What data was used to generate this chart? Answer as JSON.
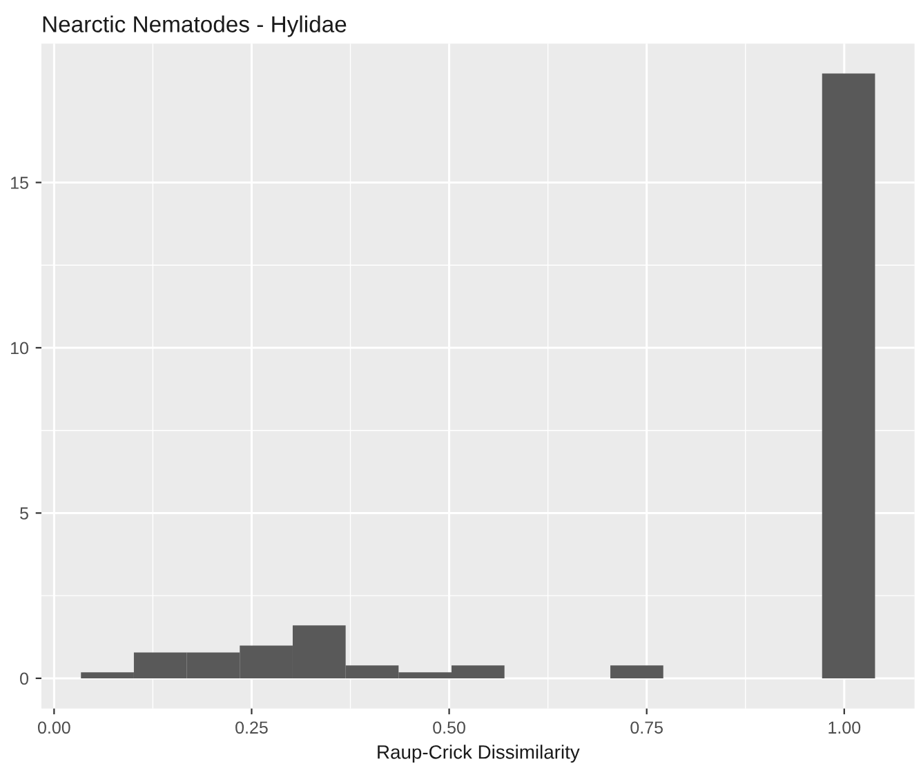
{
  "chart_data": {
    "type": "histogram",
    "title": "Nearctic Nematodes - Hylidae",
    "xlabel": "Raup-Crick Dissimilarity",
    "bins": [
      0.034,
      0.101,
      0.168,
      0.235,
      0.302,
      0.369,
      0.436,
      0.503,
      0.57,
      0.637,
      0.704,
      0.771,
      0.838,
      0.905,
      0.972,
      1.039
    ],
    "values": [
      0.18,
      0.78,
      0.78,
      0.99,
      1.6,
      0.39,
      0.18,
      0.39,
      0,
      0,
      0.39,
      0,
      0,
      0,
      18.3
    ],
    "color": "#595959",
    "xlim": [
      -0.016,
      1.089
    ],
    "xticks": [
      {
        "value": 0,
        "label": "0.00"
      },
      0.25,
      {
        "value": 0.5,
        "label": "0.50"
      },
      0.75,
      {
        "value": 1,
        "label": "1.00"
      }
    ],
    "ylim": [
      -0.915,
      19.2
    ],
    "yticks": [
      0,
      5,
      10,
      15
    ],
    "grid": true
  }
}
